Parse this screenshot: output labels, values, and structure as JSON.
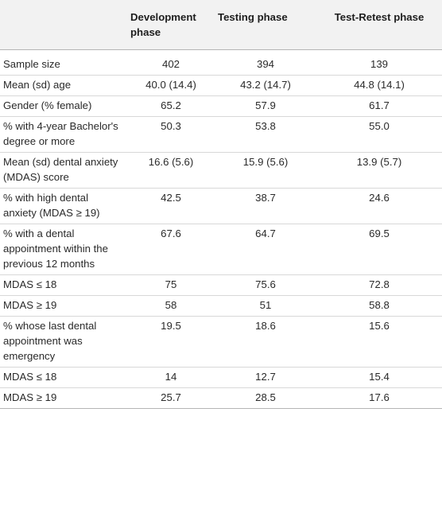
{
  "table": {
    "headers": [
      "",
      "Development phase",
      "Testing phase",
      "Test-Retest phase"
    ],
    "rows": [
      {
        "label": "Sample size",
        "values": [
          "402",
          "394",
          "139"
        ]
      },
      {
        "label": "Mean (sd) age",
        "values": [
          "40.0 (14.4)",
          "43.2 (14.7)",
          "44.8 (14.1)"
        ]
      },
      {
        "label": "Gender (% female)",
        "values": [
          "65.2",
          "57.9",
          "61.7"
        ]
      },
      {
        "label": "% with 4-year Bachelor's degree or more",
        "values": [
          "50.3",
          "53.8",
          "55.0"
        ]
      },
      {
        "label": "Mean (sd) dental anxiety (MDAS) score",
        "values": [
          "16.6 (5.6)",
          "15.9 (5.6)",
          "13.9 (5.7)"
        ]
      },
      {
        "label": "% with high dental anxiety (MDAS ≥ 19)",
        "values": [
          "42.5",
          "38.7",
          "24.6"
        ]
      },
      {
        "label": "% with a dental appointment within the previous 12 months",
        "values": [
          "67.6",
          "64.7",
          "69.5"
        ]
      },
      {
        "label": "MDAS ≤ 18",
        "values": [
          "75",
          "75.6",
          "72.8"
        ]
      },
      {
        "label": "MDAS ≥ 19",
        "values": [
          "58",
          "51",
          "58.8"
        ]
      },
      {
        "label": "% whose last dental appointment was emergency",
        "values": [
          "19.5",
          "18.6",
          "15.6"
        ]
      },
      {
        "label": "MDAS ≤ 18",
        "values": [
          "14",
          "12.7",
          "15.4"
        ]
      },
      {
        "label": "MDAS ≥ 19",
        "values": [
          "25.7",
          "28.5",
          "17.6"
        ]
      }
    ]
  }
}
